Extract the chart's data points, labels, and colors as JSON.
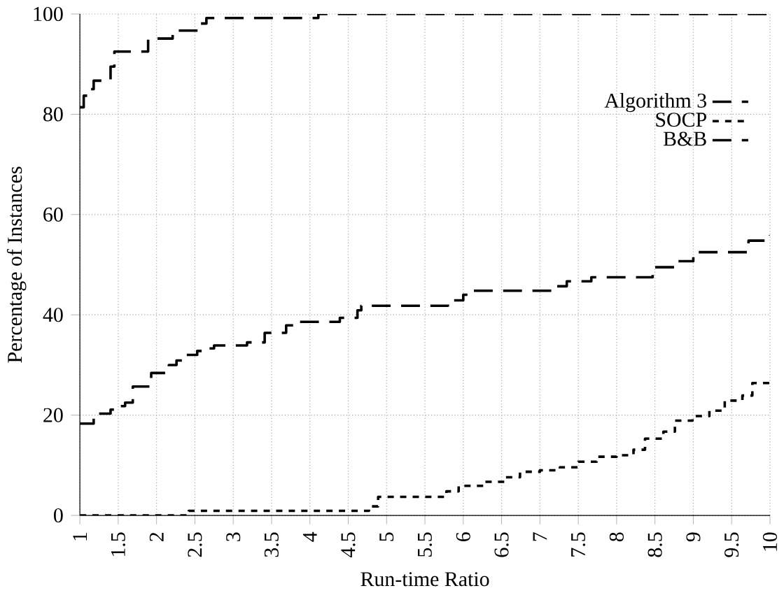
{
  "chart_data": {
    "type": "step",
    "xlabel": "Run-time Ratio",
    "ylabel": "Percentage of Instances",
    "xlim": [
      1,
      10
    ],
    "ylim": [
      0,
      100
    ],
    "xticks": [
      1,
      1.5,
      2,
      2.5,
      3,
      3.5,
      4,
      4.5,
      5,
      5.5,
      6,
      6.5,
      7,
      7.5,
      8,
      8.5,
      9,
      9.5,
      10
    ],
    "yticks": [
      0,
      20,
      40,
      60,
      80,
      100
    ],
    "grid": true,
    "legend": "top right",
    "series": [
      {
        "name": "Algorithm 3",
        "color": "#000000",
        "line_style": "dashed",
        "x": [
          1,
          1.05,
          1.1,
          1.18,
          1.4,
          1.45,
          1.6,
          1.89,
          2.21,
          2.57,
          2.65,
          3.3,
          4.11,
          10
        ],
        "values": [
          81.4,
          83.7,
          85,
          86.7,
          89.5,
          92.5,
          92.5,
          95.1,
          96.7,
          98.1,
          99.2,
          99.2,
          100,
          100
        ]
      },
      {
        "name": "SOCP",
        "color": "#000000",
        "line_style": "dotted",
        "x": [
          1,
          2.42,
          4.6,
          4.77,
          4.89,
          5.78,
          5.94,
          6.28,
          6.54,
          6.74,
          7.0,
          7.26,
          7.5,
          7.74,
          8.0,
          8.22,
          8.37,
          8.61,
          8.76,
          8.99,
          9.21,
          9.41,
          9.64,
          9.77,
          10
        ],
        "values": [
          0,
          0.9,
          0.9,
          1.8,
          3.7,
          4.8,
          5.9,
          6.7,
          7.6,
          8.7,
          9.0,
          9.6,
          10.7,
          11.7,
          12.0,
          13.1,
          15.3,
          16.7,
          18.9,
          19.8,
          20.9,
          22.9,
          23.9,
          26.4,
          27.5
        ]
      },
      {
        "name": "B&B",
        "color": "#000000",
        "line_style": "dashed",
        "x": [
          1,
          1.18,
          1.4,
          1.49,
          1.59,
          1.69,
          1.93,
          2.16,
          2.26,
          2.39,
          2.53,
          2.69,
          2.75,
          3.18,
          3.41,
          3.69,
          3.87,
          4.39,
          4.62,
          4.67,
          5.8,
          6.0,
          6.12,
          7.19,
          7.35,
          7.67,
          8.47,
          8.76,
          9.0,
          9.72,
          10
        ],
        "values": [
          18.3,
          20.3,
          21.1,
          21.8,
          22.5,
          25.7,
          28.4,
          30,
          30.9,
          32,
          32.8,
          33.3,
          33.9,
          34.5,
          36.4,
          37.9,
          38.6,
          39.4,
          40.9,
          41.8,
          42.9,
          44.0,
          44.8,
          45.7,
          46.7,
          47.5,
          49.5,
          50.7,
          52.5,
          54.8,
          55.9
        ]
      }
    ]
  }
}
